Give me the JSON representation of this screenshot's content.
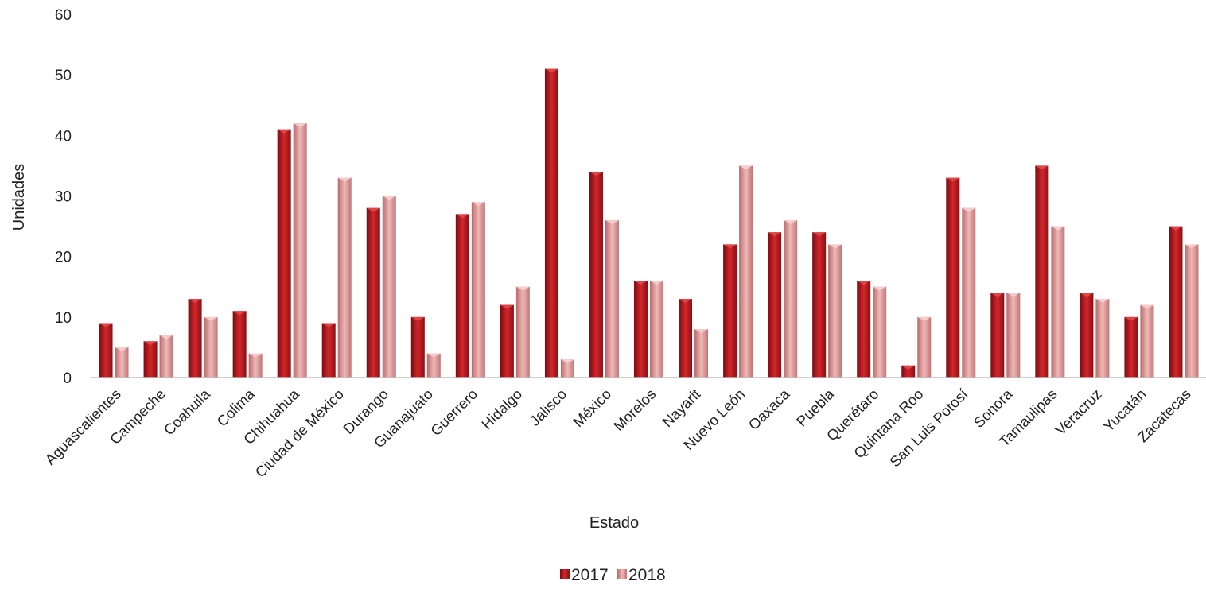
{
  "chart_data": {
    "type": "bar",
    "title": "",
    "xlabel": "Estado",
    "ylabel": "Unidades",
    "ylim": [
      0,
      60
    ],
    "yticks": [
      0,
      10,
      20,
      30,
      40,
      50,
      60
    ],
    "grid": false,
    "legend_position": "bottom",
    "categories": [
      "Aguascalientes",
      "Campeche",
      "Coahuila",
      "Colima",
      "Chihuahua",
      "Ciudad de México",
      "Durango",
      "Guanajuato",
      "Guerrero",
      "Hidalgo",
      "Jalisco",
      "México",
      "Morelos",
      "Nayarit",
      "Nuevo León",
      "Oaxaca",
      "Puebla",
      "Querétaro",
      "Quintana Roo",
      "San Luis Potosí",
      "Sonora",
      "Tamaulipas",
      "Veracruz",
      "Yucatán",
      "Zacatecas"
    ],
    "series": [
      {
        "name": "2017",
        "color": "#b3171c",
        "values": [
          9,
          6,
          13,
          11,
          41,
          9,
          28,
          10,
          27,
          12,
          51,
          34,
          16,
          13,
          22,
          24,
          24,
          16,
          2,
          33,
          14,
          35,
          14,
          10,
          25
        ]
      },
      {
        "name": "2018",
        "color": "#d99595",
        "values": [
          5,
          7,
          10,
          4,
          42,
          33,
          30,
          4,
          29,
          15,
          3,
          26,
          16,
          8,
          35,
          26,
          22,
          15,
          10,
          28,
          14,
          25,
          13,
          12,
          22
        ]
      }
    ]
  }
}
